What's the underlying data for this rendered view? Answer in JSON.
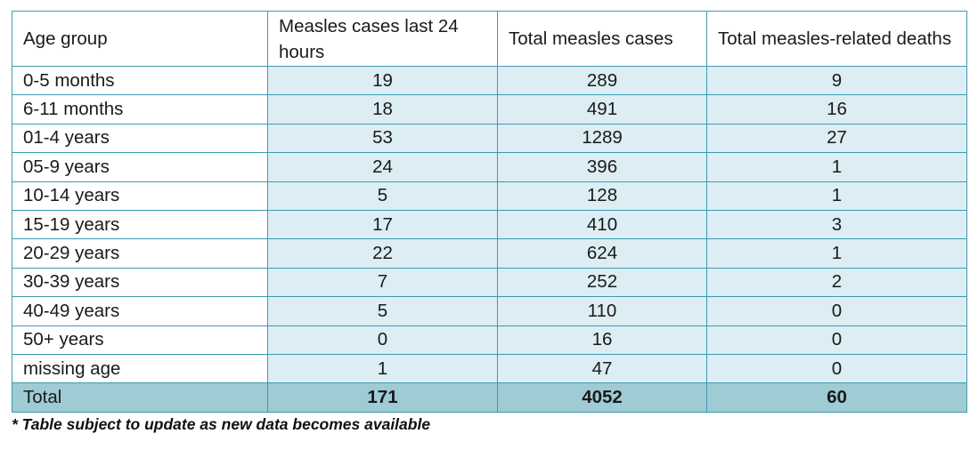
{
  "table": {
    "headers": [
      "Age group",
      "Measles cases last 24 hours",
      "Total measles cases",
      "Total measles-related deaths"
    ],
    "rows": [
      [
        "0-5 months",
        "19",
        "289",
        "9"
      ],
      [
        "6-11 months",
        "18",
        "491",
        "16"
      ],
      [
        "01-4 years",
        "53",
        "1289",
        "27"
      ],
      [
        "05-9 years",
        "24",
        "396",
        "1"
      ],
      [
        "10-14 years",
        "5",
        "128",
        "1"
      ],
      [
        "15-19 years",
        "17",
        "410",
        "3"
      ],
      [
        "20-29 years",
        "22",
        "624",
        "1"
      ],
      [
        "30-39 years",
        "7",
        "252",
        "2"
      ],
      [
        "40-49 years",
        "5",
        "110",
        "0"
      ],
      [
        "50+ years",
        "0",
        "16",
        "0"
      ],
      [
        "missing age",
        "1",
        "47",
        "0"
      ]
    ],
    "total": [
      "Total",
      "171",
      "4052",
      "60"
    ]
  },
  "footnote": "* Table subject to update as new data becomes available",
  "colors": {
    "border": "#3f9ab3",
    "cell_fill": "#dcedf3",
    "total_fill": "#9fcbd4"
  }
}
